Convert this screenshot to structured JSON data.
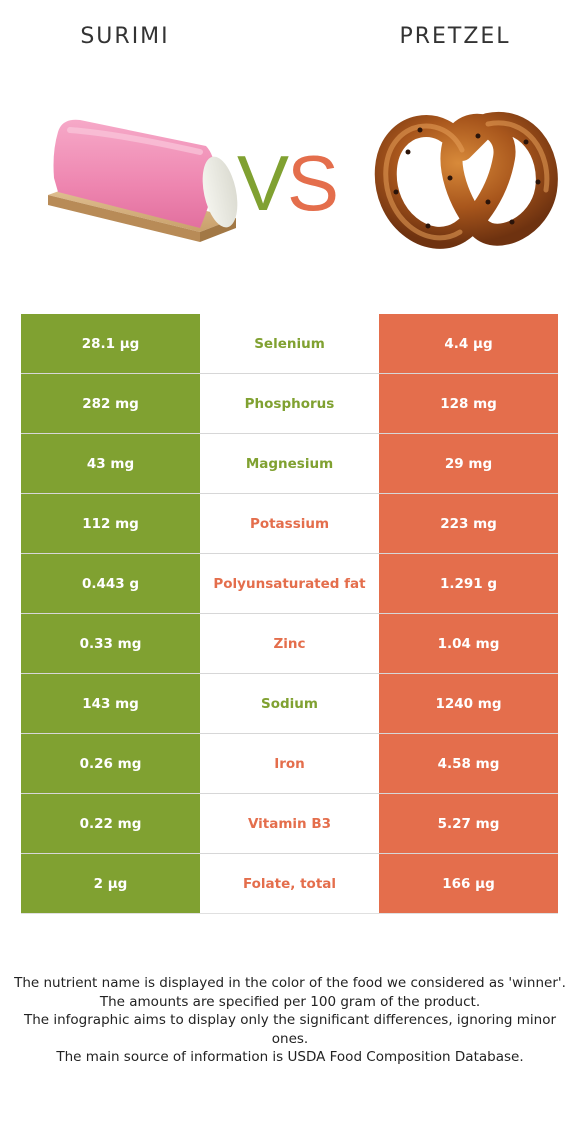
{
  "header": {
    "left_food": "SURIMI",
    "right_food": "PRETZEL",
    "vs_v": "V",
    "vs_s": "S"
  },
  "colors": {
    "winner_left": "#80a131",
    "winner_right": "#e46e4c"
  },
  "rows": [
    {
      "nutrient": "Selenium",
      "left": "28.1 µg",
      "right": "4.4 µg",
      "winner": "left"
    },
    {
      "nutrient": "Phosphorus",
      "left": "282 mg",
      "right": "128 mg",
      "winner": "left"
    },
    {
      "nutrient": "Magnesium",
      "left": "43 mg",
      "right": "29 mg",
      "winner": "left"
    },
    {
      "nutrient": "Potassium",
      "left": "112 mg",
      "right": "223 mg",
      "winner": "right"
    },
    {
      "nutrient": "Polyunsaturated fat",
      "left": "0.443 g",
      "right": "1.291 g",
      "winner": "right"
    },
    {
      "nutrient": "Zinc",
      "left": "0.33 mg",
      "right": "1.04 mg",
      "winner": "right"
    },
    {
      "nutrient": "Sodium",
      "left": "143 mg",
      "right": "1240 mg",
      "winner": "left"
    },
    {
      "nutrient": "Iron",
      "left": "0.26 mg",
      "right": "4.58 mg",
      "winner": "right"
    },
    {
      "nutrient": "Vitamin B3",
      "left": "0.22 mg",
      "right": "5.27 mg",
      "winner": "right"
    },
    {
      "nutrient": "Folate, total",
      "left": "2 µg",
      "right": "166 µg",
      "winner": "right"
    }
  ],
  "footnote": [
    "The nutrient name is displayed in the color of the food we considered as 'winner'.",
    "The amounts are specified per 100 gram of the product.",
    "The infographic aims to display only the significant differences, ignoring minor ones.",
    "The main source of information is USDA Food Composition Database."
  ]
}
